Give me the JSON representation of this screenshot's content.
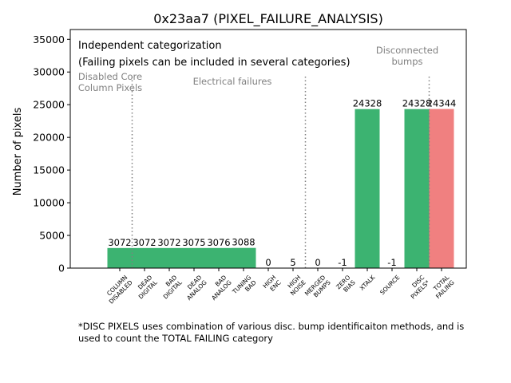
{
  "chart_data": {
    "type": "bar",
    "title": "0x23aa7 (PIXEL_FAILURE_ANALYSIS)",
    "ylabel": "Number of pixels",
    "xlabel": "",
    "ylim": [
      0,
      36500
    ],
    "yticks": [
      0,
      5000,
      10000,
      15000,
      20000,
      25000,
      30000,
      35000
    ],
    "categories": [
      [
        "COLUMN",
        "DISABLED"
      ],
      [
        "DEAD",
        "DIGITAL"
      ],
      [
        "BAD",
        "DIGITAL"
      ],
      [
        "DEAD",
        "ANALOG"
      ],
      [
        "BAD",
        "ANALOG"
      ],
      [
        "TUNING",
        "BAD"
      ],
      [
        "HIGH",
        "ENC"
      ],
      [
        "HIGH",
        "NOISE"
      ],
      [
        "MERGED",
        "BUMPS"
      ],
      [
        "ZERO",
        "BIAS"
      ],
      [
        "XTALK"
      ],
      [
        "SOURCE"
      ],
      [
        "DISC",
        "PIXELS*"
      ],
      [
        "TOTAL",
        "FAILING"
      ]
    ],
    "values": [
      3072,
      3072,
      3072,
      3075,
      3076,
      3088,
      0,
      5,
      0,
      -1,
      24328,
      -1,
      24328,
      24344
    ],
    "value_labels": [
      "3072",
      "3072",
      "3072",
      "3075",
      "3076",
      "3088",
      "0",
      "5",
      "0",
      "-1",
      "24328",
      "-1",
      "24328",
      "24344"
    ],
    "bar_colors": [
      "#3cb371",
      "#3cb371",
      "#3cb371",
      "#3cb371",
      "#3cb371",
      "#3cb371",
      "#3cb371",
      "#3cb371",
      "#3cb371",
      "#3cb371",
      "#3cb371",
      "#3cb371",
      "#3cb371",
      "#f08080"
    ],
    "annotation_lines": [
      [
        "Independent categorization"
      ],
      [
        "(Failing pixels can be included in several categories)"
      ]
    ],
    "section_labels": [
      {
        "lines": [
          "Disabled Core",
          "Column Pixels"
        ],
        "after_index": 0
      },
      {
        "lines": [
          "Electrical failures"
        ],
        "after_index": 7
      },
      {
        "lines": [
          "Disconnected",
          "bumps"
        ],
        "after_index": 12
      }
    ],
    "grid": false,
    "legend": "none"
  },
  "footnote": {
    "line1": "*DISC PIXELS uses combination of various disc. bump identificaiton methods, and is",
    "line2": "used to count the TOTAL FAILING category"
  }
}
